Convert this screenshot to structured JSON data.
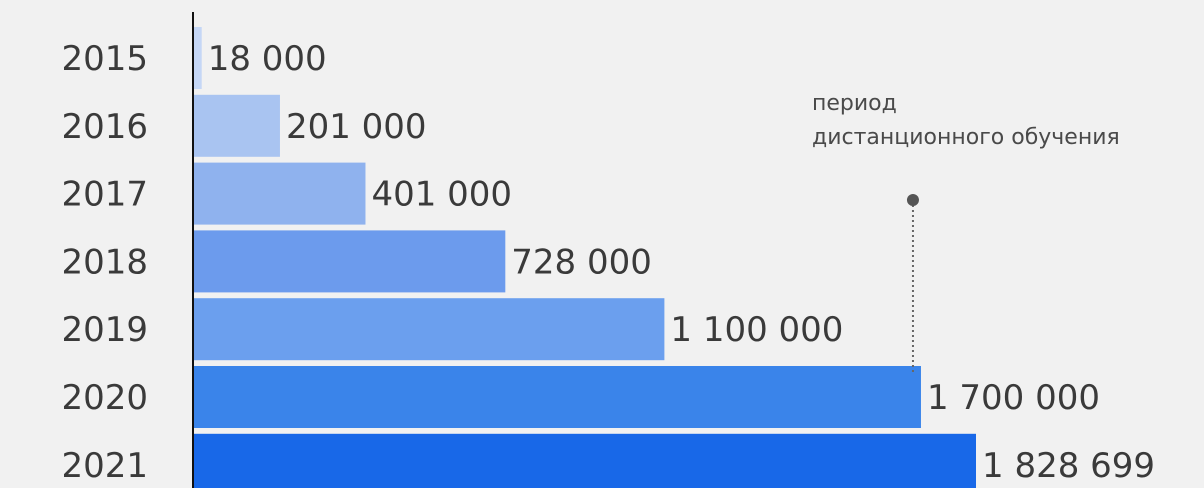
{
  "chart_data": {
    "type": "bar",
    "orientation": "horizontal",
    "categories": [
      "2015",
      "2016",
      "2017",
      "2018",
      "2019",
      "2020",
      "2021"
    ],
    "values": [
      18000,
      201000,
      401000,
      728000,
      1100000,
      1700000,
      1828699
    ],
    "value_labels": [
      "18 000",
      "201 000",
      "401 000",
      "728 000",
      "1 100 000",
      "1 700 000",
      "1 828 699"
    ],
    "bar_colors": [
      "#c5d7f6",
      "#a9c4f1",
      "#8fb2ee",
      "#6c9bed",
      "#6b9fee",
      "#3a84ea",
      "#1868e8"
    ],
    "xlim": [
      0,
      1828699
    ],
    "grid": false,
    "legend": "none",
    "annotation": {
      "lines": [
        "период",
        "дистанционного обучения"
      ],
      "points_to_category": "2020",
      "marker_value": 1700000
    }
  }
}
